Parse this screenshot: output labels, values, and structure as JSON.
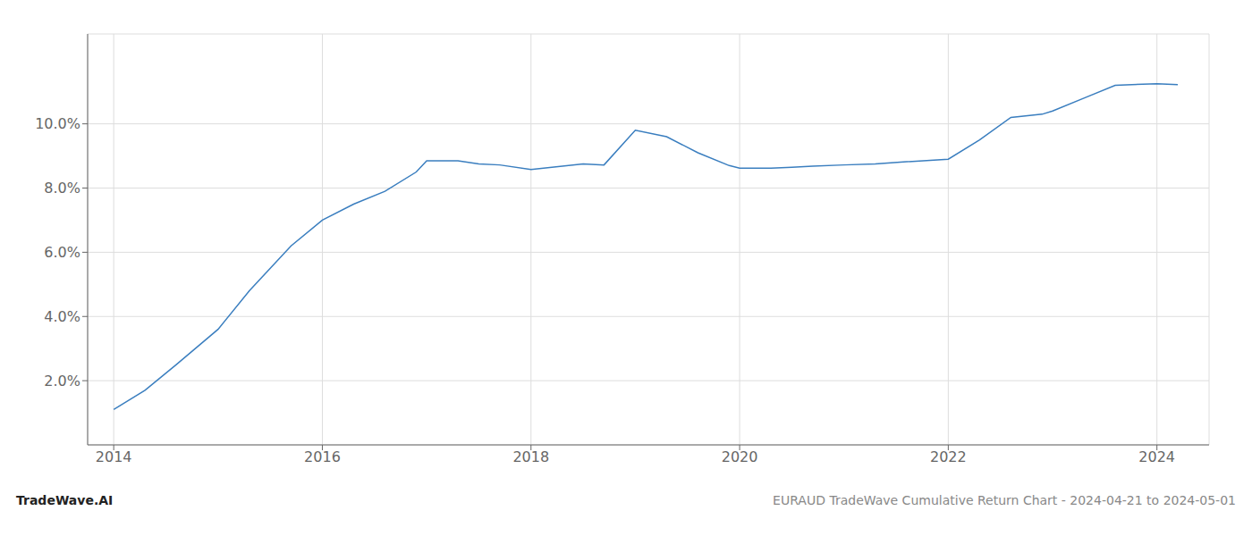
{
  "chart_data": {
    "type": "line",
    "x": [
      2014.0,
      2014.3,
      2014.6,
      2015.0,
      2015.3,
      2015.7,
      2016.0,
      2016.3,
      2016.6,
      2016.9,
      2017.0,
      2017.3,
      2017.5,
      2017.7,
      2018.0,
      2018.2,
      2018.5,
      2018.7,
      2019.0,
      2019.3,
      2019.6,
      2019.9,
      2020.0,
      2020.3,
      2020.5,
      2020.7,
      2021.0,
      2021.3,
      2021.6,
      2022.0,
      2022.3,
      2022.6,
      2022.9,
      2023.0,
      2023.3,
      2023.6,
      2024.0,
      2024.2
    ],
    "values": [
      1.1,
      1.7,
      2.5,
      3.6,
      4.8,
      6.2,
      7.0,
      7.5,
      7.9,
      8.5,
      8.85,
      8.85,
      8.75,
      8.72,
      8.58,
      8.65,
      8.75,
      8.72,
      9.8,
      9.6,
      9.1,
      8.7,
      8.62,
      8.62,
      8.65,
      8.68,
      8.72,
      8.75,
      8.82,
      8.9,
      9.5,
      10.2,
      10.3,
      10.4,
      10.8,
      11.2,
      11.25,
      11.22
    ],
    "color": "#3a7ebf",
    "xlim": [
      2013.75,
      2024.5
    ],
    "ylim": [
      0.0,
      12.8
    ],
    "xticks": [
      2014,
      2016,
      2018,
      2020,
      2022,
      2024
    ],
    "yticks": [
      {
        "value": 2.0,
        "label": "2.0%"
      },
      {
        "value": 4.0,
        "label": "4.0%"
      },
      {
        "value": 6.0,
        "label": "6.0%"
      },
      {
        "value": 8.0,
        "label": "8.0%"
      },
      {
        "value": 10.0,
        "label": "10.0%"
      }
    ],
    "grid": true,
    "annotations": [
      {
        "text": "TradeWave.AI",
        "color": "#222222"
      },
      {
        "text": "EURAUD TradeWave Cumulative Return Chart - 2024-04-21 to 2024-05-01",
        "color": "#888888"
      }
    ]
  }
}
